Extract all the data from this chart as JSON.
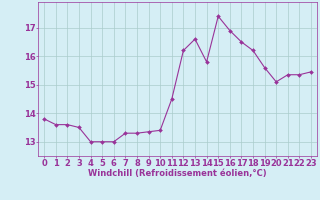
{
  "x": [
    0,
    1,
    2,
    3,
    4,
    5,
    6,
    7,
    8,
    9,
    10,
    11,
    12,
    13,
    14,
    15,
    16,
    17,
    18,
    19,
    20,
    21,
    22,
    23
  ],
  "y": [
    13.8,
    13.6,
    13.6,
    13.5,
    13.0,
    13.0,
    13.0,
    13.3,
    13.3,
    13.35,
    13.4,
    14.5,
    16.2,
    16.6,
    15.8,
    17.4,
    16.9,
    16.5,
    16.2,
    15.6,
    15.1,
    15.35,
    15.35,
    15.45
  ],
  "line_color": "#993399",
  "marker": "D",
  "marker_size": 2,
  "bg_color": "#d5eef5",
  "grid_color": "#aacccc",
  "tick_color": "#993399",
  "xlabel": "Windchill (Refroidissement éolien,°C)",
  "ylabel_ticks": [
    13,
    14,
    15,
    16,
    17
  ],
  "xlim": [
    -0.5,
    23.5
  ],
  "ylim": [
    12.5,
    17.9
  ],
  "xticks": [
    0,
    1,
    2,
    3,
    4,
    5,
    6,
    7,
    8,
    9,
    10,
    11,
    12,
    13,
    14,
    15,
    16,
    17,
    18,
    19,
    20,
    21,
    22,
    23
  ],
  "font_size_xlabel": 6.0,
  "font_size_ticks": 6.0
}
